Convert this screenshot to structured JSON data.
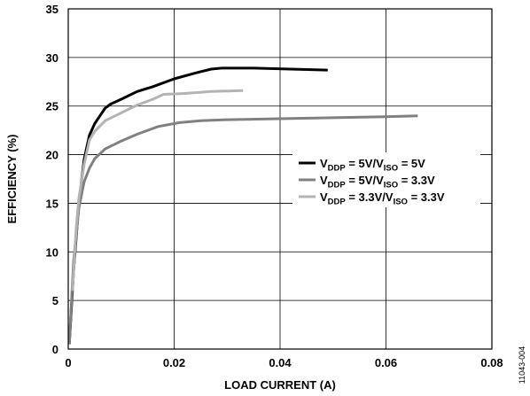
{
  "chart_data": {
    "type": "line",
    "title": "",
    "xlabel": "LOAD CURRENT (A)",
    "ylabel": "EFFICIENCY (%)",
    "xlim": [
      0,
      0.08
    ],
    "ylim": [
      0,
      35
    ],
    "xticks": [
      0,
      0.02,
      0.04,
      0.06,
      0.08
    ],
    "xtick_labels": [
      "0",
      "0.02",
      "0.04",
      "0.06",
      "0.08"
    ],
    "yticks": [
      0,
      5,
      10,
      15,
      20,
      25,
      30,
      35
    ],
    "ytick_labels": [
      "0",
      "5",
      "10",
      "15",
      "20",
      "25",
      "30",
      "35"
    ],
    "grid": true,
    "legend_position": "right-middle",
    "series": [
      {
        "label_parts": [
          [
            "V",
            ""
          ],
          [
            "DDP",
            "sub"
          ],
          [
            " = 5V/V",
            ""
          ],
          [
            "ISO",
            "sub"
          ],
          [
            " = 5V",
            ""
          ]
        ],
        "color": "#000000",
        "points": [
          [
            0.0002,
            0.5
          ],
          [
            0.001,
            8
          ],
          [
            0.002,
            15
          ],
          [
            0.003,
            19.5
          ],
          [
            0.004,
            22
          ],
          [
            0.005,
            23.2
          ],
          [
            0.006,
            24
          ],
          [
            0.007,
            24.8
          ],
          [
            0.008,
            25.2
          ],
          [
            0.01,
            25.7
          ],
          [
            0.013,
            26.5
          ],
          [
            0.016,
            27
          ],
          [
            0.02,
            27.8
          ],
          [
            0.024,
            28.4
          ],
          [
            0.027,
            28.8
          ],
          [
            0.029,
            28.9
          ],
          [
            0.035,
            28.9
          ],
          [
            0.042,
            28.8
          ],
          [
            0.049,
            28.7
          ]
        ]
      },
      {
        "label_parts": [
          [
            "V",
            ""
          ],
          [
            "DDP",
            "sub"
          ],
          [
            " = 5V/V",
            ""
          ],
          [
            "ISO",
            "sub"
          ],
          [
            " = 3.3V",
            ""
          ]
        ],
        "color": "#808080",
        "points": [
          [
            0.0002,
            0.5
          ],
          [
            0.001,
            9
          ],
          [
            0.002,
            14.5
          ],
          [
            0.003,
            17.2
          ],
          [
            0.004,
            18.6
          ],
          [
            0.005,
            19.6
          ],
          [
            0.007,
            20.6
          ],
          [
            0.01,
            21.4
          ],
          [
            0.013,
            22.1
          ],
          [
            0.017,
            22.9
          ],
          [
            0.021,
            23.3
          ],
          [
            0.025,
            23.5
          ],
          [
            0.03,
            23.6
          ],
          [
            0.04,
            23.7
          ],
          [
            0.05,
            23.8
          ],
          [
            0.06,
            23.9
          ],
          [
            0.066,
            24
          ]
        ]
      },
      {
        "label_parts": [
          [
            "V",
            ""
          ],
          [
            "DDP",
            "sub"
          ],
          [
            " = 3.3V/V",
            ""
          ],
          [
            "ISO",
            "sub"
          ],
          [
            " = 3.3V",
            ""
          ]
        ],
        "color": "#b3b3b3",
        "points": [
          [
            0.0008,
            6
          ],
          [
            0.0015,
            12.5
          ],
          [
            0.002,
            15.5
          ],
          [
            0.003,
            19
          ],
          [
            0.004,
            21.5
          ],
          [
            0.005,
            22.4
          ],
          [
            0.007,
            23.5
          ],
          [
            0.01,
            24.3
          ],
          [
            0.013,
            25.1
          ],
          [
            0.016,
            25.7
          ],
          [
            0.018,
            26.2
          ],
          [
            0.022,
            26.3
          ],
          [
            0.027,
            26.5
          ],
          [
            0.033,
            26.6
          ]
        ]
      }
    ]
  },
  "figure_code": "11043-004"
}
